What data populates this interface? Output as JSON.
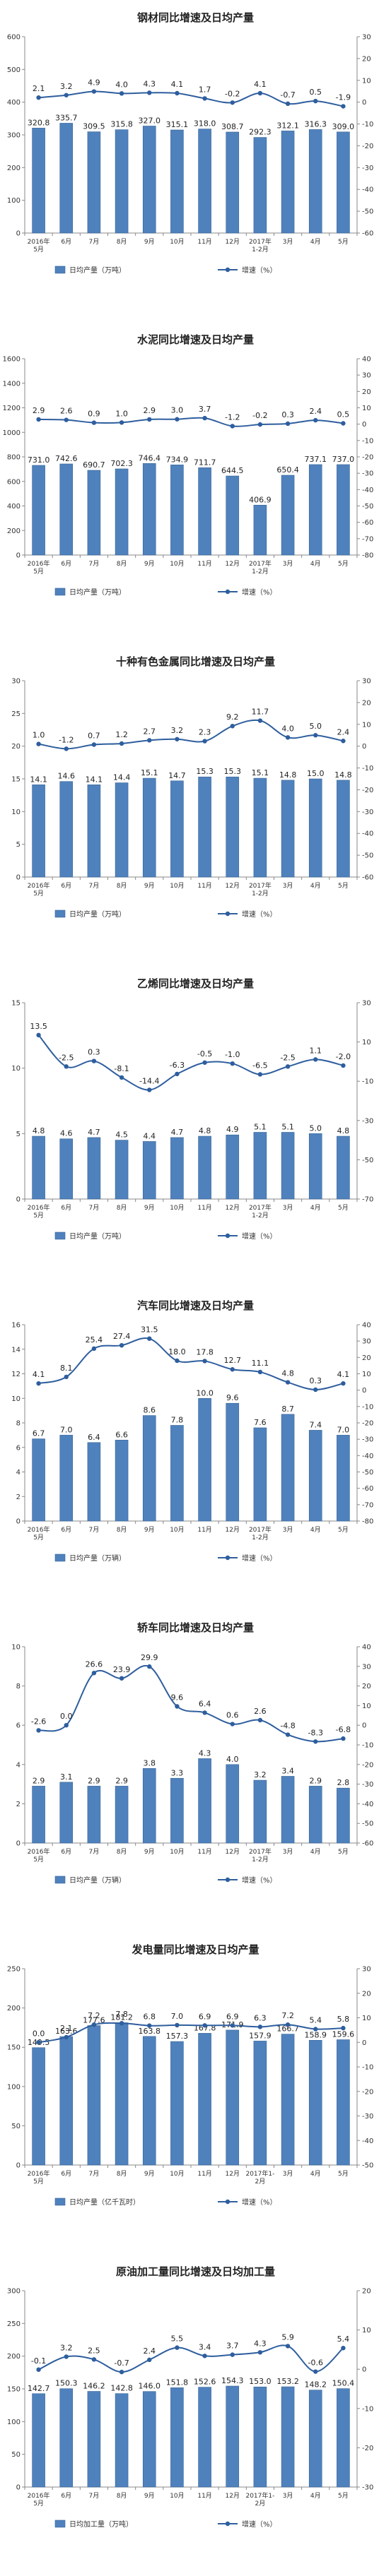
{
  "colors": {
    "bar": "#4f81bd",
    "bar_stroke": "#3a6797",
    "line": "#2e5e9e",
    "axis": "#888888"
  },
  "chart_data": [
    {
      "type": "bar",
      "title": "钢材同比增速及日均产量",
      "categories": [
        [
          "2016年",
          "5月"
        ],
        [
          "6月"
        ],
        [
          "7月"
        ],
        [
          "8月"
        ],
        [
          "9月"
        ],
        [
          "10月"
        ],
        [
          "11月"
        ],
        [
          "12月"
        ],
        [
          "2017年",
          "1-2月"
        ],
        [
          "3月"
        ],
        [
          "4月"
        ],
        [
          "5月"
        ]
      ],
      "ylim_left": [
        0,
        600
      ],
      "yticks_left": [
        0,
        100,
        200,
        300,
        400,
        500,
        600
      ],
      "ylim_right": [
        -60,
        30
      ],
      "yticks_right": [
        -60,
        -50,
        -40,
        -30,
        -20,
        -10,
        0,
        10,
        20,
        30
      ],
      "legend_position": "bottom",
      "grid": false,
      "series": [
        {
          "name": "日均产量（万吨）",
          "type": "bar",
          "axis": "left",
          "values": [
            320.8,
            335.7,
            309.5,
            315.8,
            327.0,
            315.1,
            318.0,
            308.7,
            292.3,
            312.1,
            316.3,
            309.0
          ],
          "labels": [
            "320.8",
            "335.7",
            "309.5",
            "315.8",
            "327.0",
            "315.1",
            "318.0",
            "308.7",
            "292.3",
            "312.1",
            "316.3",
            "309.0"
          ]
        },
        {
          "name": "增速（%）",
          "type": "line",
          "axis": "right",
          "values": [
            2.1,
            3.2,
            4.9,
            4.0,
            4.3,
            4.1,
            1.7,
            -0.2,
            4.1,
            -0.7,
            0.5,
            -1.9
          ],
          "labels": [
            "2.1",
            "3.2",
            "4.9",
            "4.0",
            "4.3",
            "4.1",
            "1.7",
            "-0.2",
            "4.1",
            "-0.7",
            "0.5",
            "-1.9"
          ]
        }
      ]
    },
    {
      "type": "bar",
      "title": "水泥同比增速及日均产量",
      "categories": [
        [
          "2016年",
          "5月"
        ],
        [
          "6月"
        ],
        [
          "7月"
        ],
        [
          "8月"
        ],
        [
          "9月"
        ],
        [
          "10月"
        ],
        [
          "11月"
        ],
        [
          "12月"
        ],
        [
          "2017年",
          "1-2月"
        ],
        [
          "3月"
        ],
        [
          "4月"
        ],
        [
          "5月"
        ]
      ],
      "ylim_left": [
        0,
        1600
      ],
      "yticks_left": [
        0,
        200,
        400,
        600,
        800,
        1000,
        1200,
        1400,
        1600
      ],
      "ylim_right": [
        -80,
        40
      ],
      "yticks_right": [
        -80,
        -70,
        -60,
        -50,
        -40,
        -30,
        -20,
        -10,
        0,
        10,
        20,
        30,
        40
      ],
      "legend_position": "bottom",
      "grid": false,
      "series": [
        {
          "name": "日均产量（万吨）",
          "type": "bar",
          "axis": "left",
          "values": [
            731.0,
            742.6,
            690.7,
            702.3,
            746.4,
            734.9,
            711.7,
            644.5,
            406.9,
            650.4,
            737.1,
            737.0
          ],
          "labels": [
            "731.0",
            "742.6",
            "690.7",
            "702.3",
            "746.4",
            "734.9",
            "711.7",
            "644.5",
            "406.9",
            "650.4",
            "737.1",
            "737.0"
          ]
        },
        {
          "name": "增速（%）",
          "type": "line",
          "axis": "right",
          "values": [
            2.9,
            2.6,
            0.9,
            1.0,
            2.9,
            3.0,
            3.7,
            -1.2,
            -0.2,
            0.3,
            2.4,
            0.5
          ],
          "labels": [
            "2.9",
            "2.6",
            "0.9",
            "1.0",
            "2.9",
            "3.0",
            "3.7",
            "-1.2",
            "-0.2",
            "0.3",
            "2.4",
            "0.5"
          ]
        }
      ]
    },
    {
      "type": "bar",
      "title": "十种有色金属同比增速及日均产量",
      "categories": [
        [
          "2016年",
          "5月"
        ],
        [
          "6月"
        ],
        [
          "7月"
        ],
        [
          "8月"
        ],
        [
          "9月"
        ],
        [
          "10月"
        ],
        [
          "11月"
        ],
        [
          "12月"
        ],
        [
          "2017年",
          "1-2月"
        ],
        [
          "3月"
        ],
        [
          "4月"
        ],
        [
          "5月"
        ]
      ],
      "ylim_left": [
        0,
        30
      ],
      "yticks_left": [
        0,
        5,
        10,
        15,
        20,
        25,
        30
      ],
      "ylim_right": [
        -60,
        30
      ],
      "yticks_right": [
        -60,
        -50,
        -40,
        -30,
        -20,
        -10,
        0,
        10,
        20,
        30
      ],
      "legend_position": "bottom",
      "grid": false,
      "series": [
        {
          "name": "日均产量（万吨）",
          "type": "bar",
          "axis": "left",
          "values": [
            14.1,
            14.6,
            14.1,
            14.4,
            15.1,
            14.7,
            15.3,
            15.3,
            15.1,
            14.8,
            15.0,
            14.8
          ],
          "labels": [
            "14.1",
            "14.6",
            "14.1",
            "14.4",
            "15.1",
            "14.7",
            "15.3",
            "15.3",
            "15.1",
            "14.8",
            "15.0",
            "14.8"
          ]
        },
        {
          "name": "增速（%）",
          "type": "line",
          "axis": "right",
          "values": [
            1.0,
            -1.2,
            0.7,
            1.2,
            2.7,
            3.2,
            2.3,
            9.2,
            11.7,
            4.0,
            5.0,
            2.4
          ],
          "labels": [
            "1.0",
            "-1.2",
            "0.7",
            "1.2",
            "2.7",
            "3.2",
            "2.3",
            "9.2",
            "11.7",
            "4.0",
            "5.0",
            "2.4"
          ]
        }
      ]
    },
    {
      "type": "bar",
      "title": "乙烯同比增速及日均产量",
      "categories": [
        [
          "2016年",
          "5月"
        ],
        [
          "6月"
        ],
        [
          "7月"
        ],
        [
          "8月"
        ],
        [
          "9月"
        ],
        [
          "10月"
        ],
        [
          "11月"
        ],
        [
          "12月"
        ],
        [
          "2017年",
          "1-2月"
        ],
        [
          "3月"
        ],
        [
          "4月"
        ],
        [
          "5月"
        ]
      ],
      "ylim_left": [
        0,
        15
      ],
      "yticks_left": [
        0,
        5,
        10,
        15
      ],
      "ylim_right": [
        -70,
        30
      ],
      "yticks_right": [
        -70,
        -50,
        -30,
        -10,
        10,
        30
      ],
      "legend_position": "bottom",
      "grid": false,
      "series": [
        {
          "name": "日均产量（万吨）",
          "type": "bar",
          "axis": "left",
          "values": [
            4.8,
            4.6,
            4.7,
            4.5,
            4.4,
            4.7,
            4.8,
            4.9,
            5.1,
            5.1,
            5.0,
            4.8
          ],
          "labels": [
            "4.8",
            "4.6",
            "4.7",
            "4.5",
            "4.4",
            "4.7",
            "4.8",
            "4.9",
            "5.1",
            "5.1",
            "5.0",
            "4.8"
          ]
        },
        {
          "name": "增速（%）",
          "type": "line",
          "axis": "right",
          "values": [
            13.5,
            -2.5,
            0.3,
            -8.1,
            -14.4,
            -6.3,
            -0.5,
            -1.0,
            -6.5,
            -2.5,
            1.1,
            -2.0
          ],
          "labels": [
            "13.5",
            "-2.5",
            "0.3",
            "-8.1",
            "-14.4",
            "-6.3",
            "-0.5",
            "-1.0",
            "-6.5",
            "-2.5",
            "1.1",
            "-2.0"
          ]
        }
      ]
    },
    {
      "type": "bar",
      "title": "汽车同比增速及日均产量",
      "categories": [
        [
          "2016年",
          "5月"
        ],
        [
          "6月"
        ],
        [
          "7月"
        ],
        [
          "8月"
        ],
        [
          "9月"
        ],
        [
          "10月"
        ],
        [
          "11月"
        ],
        [
          "12月"
        ],
        [
          "2017年",
          "1-2月"
        ],
        [
          "3月"
        ],
        [
          "4月"
        ],
        [
          "5月"
        ]
      ],
      "ylim_left": [
        0,
        16
      ],
      "yticks_left": [
        0,
        2,
        4,
        6,
        8,
        10,
        12,
        14,
        16
      ],
      "ylim_right": [
        -80,
        40
      ],
      "yticks_right": [
        -80,
        -70,
        -60,
        -50,
        -40,
        -30,
        -20,
        -10,
        0,
        10,
        20,
        30,
        40
      ],
      "legend_position": "bottom",
      "grid": false,
      "series": [
        {
          "name": "日均产量（万辆）",
          "type": "bar",
          "axis": "left",
          "values": [
            6.7,
            7.0,
            6.4,
            6.6,
            8.6,
            7.8,
            10.0,
            9.6,
            7.6,
            8.7,
            7.4,
            7.0
          ],
          "labels": [
            "6.7",
            "7.0",
            "6.4",
            "6.6",
            "8.6",
            "7.8",
            "10.0",
            "9.6",
            "7.6",
            "8.7",
            "7.4",
            "7.0"
          ]
        },
        {
          "name": "增速（%）",
          "type": "line",
          "axis": "right",
          "values": [
            4.1,
            8.1,
            25.4,
            27.4,
            31.5,
            18.0,
            17.8,
            12.7,
            11.1,
            4.8,
            0.3,
            4.1
          ],
          "labels": [
            "4.1",
            "8.1",
            "25.4",
            "27.4",
            "31.5",
            "18.0",
            "17.8",
            "12.7",
            "11.1",
            "4.8",
            "0.3",
            "4.1"
          ]
        }
      ]
    },
    {
      "type": "bar",
      "title": "轿车同比增速及日均产量",
      "categories": [
        [
          "2016年",
          "5月"
        ],
        [
          "6月"
        ],
        [
          "7月"
        ],
        [
          "8月"
        ],
        [
          "9月"
        ],
        [
          "10月"
        ],
        [
          "11月"
        ],
        [
          "12月"
        ],
        [
          "2017年",
          "1-2月"
        ],
        [
          "3月"
        ],
        [
          "4月"
        ],
        [
          "5月"
        ]
      ],
      "ylim_left": [
        0,
        10
      ],
      "yticks_left": [
        0,
        2,
        4,
        6,
        8,
        10
      ],
      "ylim_right": [
        -60,
        40
      ],
      "yticks_right": [
        -60,
        -50,
        -40,
        -30,
        -20,
        -10,
        0,
        10,
        20,
        30,
        40
      ],
      "legend_position": "bottom",
      "grid": false,
      "series": [
        {
          "name": "日均产量（万辆）",
          "type": "bar",
          "axis": "left",
          "values": [
            2.9,
            3.1,
            2.9,
            2.9,
            3.8,
            3.3,
            4.3,
            4.0,
            3.2,
            3.4,
            2.9,
            2.8
          ],
          "labels": [
            "2.9",
            "3.1",
            "2.9",
            "2.9",
            "3.8",
            "3.3",
            "4.3",
            "4.0",
            "3.2",
            "3.4",
            "2.9",
            "2.8"
          ]
        },
        {
          "name": "增速（%）",
          "type": "line",
          "axis": "right",
          "values": [
            -2.6,
            0.0,
            26.6,
            23.9,
            29.9,
            9.6,
            6.4,
            0.6,
            2.6,
            -4.8,
            -8.3,
            -6.8
          ],
          "labels": [
            "-2.6",
            "0.0",
            "26.6",
            "23.9",
            "29.9",
            "9.6",
            "6.4",
            "0.6",
            "2.6",
            "-4.8",
            "-8.3",
            "-6.8"
          ]
        }
      ]
    },
    {
      "type": "bar",
      "title": "发电量同比增速及日均产量",
      "categories": [
        [
          "2016年",
          "5月"
        ],
        [
          "6月"
        ],
        [
          "7月"
        ],
        [
          "8月"
        ],
        [
          "9月"
        ],
        [
          "10月"
        ],
        [
          "11月"
        ],
        [
          "12月"
        ],
        [
          "2017年1-",
          "2月"
        ],
        [
          "3月"
        ],
        [
          "4月"
        ],
        [
          "5月"
        ]
      ],
      "ylim_left": [
        0,
        250
      ],
      "yticks_left": [
        0,
        50,
        100,
        150,
        200,
        250
      ],
      "ylim_right": [
        -50,
        30
      ],
      "yticks_right": [
        -50,
        -40,
        -30,
        -20,
        -10,
        0,
        10,
        20,
        30
      ],
      "legend_position": "bottom",
      "grid": false,
      "series": [
        {
          "name": "日均产量（亿千瓦时）",
          "type": "bar",
          "axis": "left",
          "values": [
            149.5,
            163.6,
            177.6,
            181.2,
            163.8,
            157.3,
            167.8,
            171.9,
            157.9,
            166.7,
            158.9,
            159.6
          ],
          "labels": [
            "149.5",
            "163.6",
            "177.6",
            "181.2",
            "163.8",
            "157.3",
            "167.8",
            "171.9",
            "157.9",
            "166.7",
            "158.9",
            "159.6"
          ]
        },
        {
          "name": "增速（%）",
          "type": "line",
          "axis": "right",
          "values": [
            0.0,
            2.1,
            7.2,
            7.8,
            6.8,
            7.0,
            6.9,
            6.9,
            6.3,
            7.2,
            5.4,
            5.8
          ],
          "labels": [
            "0.0",
            "2.1",
            "7.2",
            "7.8",
            "6.8",
            "7.0",
            "6.9",
            "6.9",
            "6.3",
            "7.2",
            "5.4",
            "5.8"
          ]
        }
      ]
    },
    {
      "type": "bar",
      "title": "原油加工量同比增速及日均加工量",
      "categories": [
        [
          "2016年",
          "5月"
        ],
        [
          "6月"
        ],
        [
          "7月"
        ],
        [
          "8月"
        ],
        [
          "9月"
        ],
        [
          "10月"
        ],
        [
          "11月"
        ],
        [
          "12月"
        ],
        [
          "2017年1-",
          "2月"
        ],
        [
          "3月"
        ],
        [
          "4月"
        ],
        [
          "5月"
        ]
      ],
      "ylim_left": [
        0,
        300
      ],
      "yticks_left": [
        0,
        50,
        100,
        150,
        200,
        250,
        300
      ],
      "ylim_right": [
        -30,
        20
      ],
      "yticks_right": [
        -30,
        -20,
        -10,
        0,
        10,
        20
      ],
      "legend_position": "bottom",
      "grid": false,
      "series": [
        {
          "name": "日均加工量（万吨）",
          "type": "bar",
          "axis": "left",
          "values": [
            142.7,
            150.3,
            146.2,
            142.8,
            146.0,
            151.8,
            152.6,
            154.3,
            153.0,
            153.2,
            148.2,
            150.4
          ],
          "labels": [
            "142.7",
            "150.3",
            "146.2",
            "142.8",
            "146.0",
            "151.8",
            "152.6",
            "154.3",
            "153.0",
            "153.2",
            "148.2",
            "150.4"
          ]
        },
        {
          "name": "增速（%）",
          "type": "line",
          "axis": "right",
          "values": [
            -0.1,
            3.2,
            2.5,
            -0.7,
            2.4,
            5.5,
            3.4,
            3.7,
            4.3,
            5.9,
            -0.6,
            5.4
          ],
          "labels": [
            "-0.1",
            "3.2",
            "2.5",
            "-0.7",
            "2.4",
            "5.5",
            "3.4",
            "3.7",
            "4.3",
            "5.9",
            "-0.6",
            "5.4"
          ]
        }
      ]
    }
  ]
}
